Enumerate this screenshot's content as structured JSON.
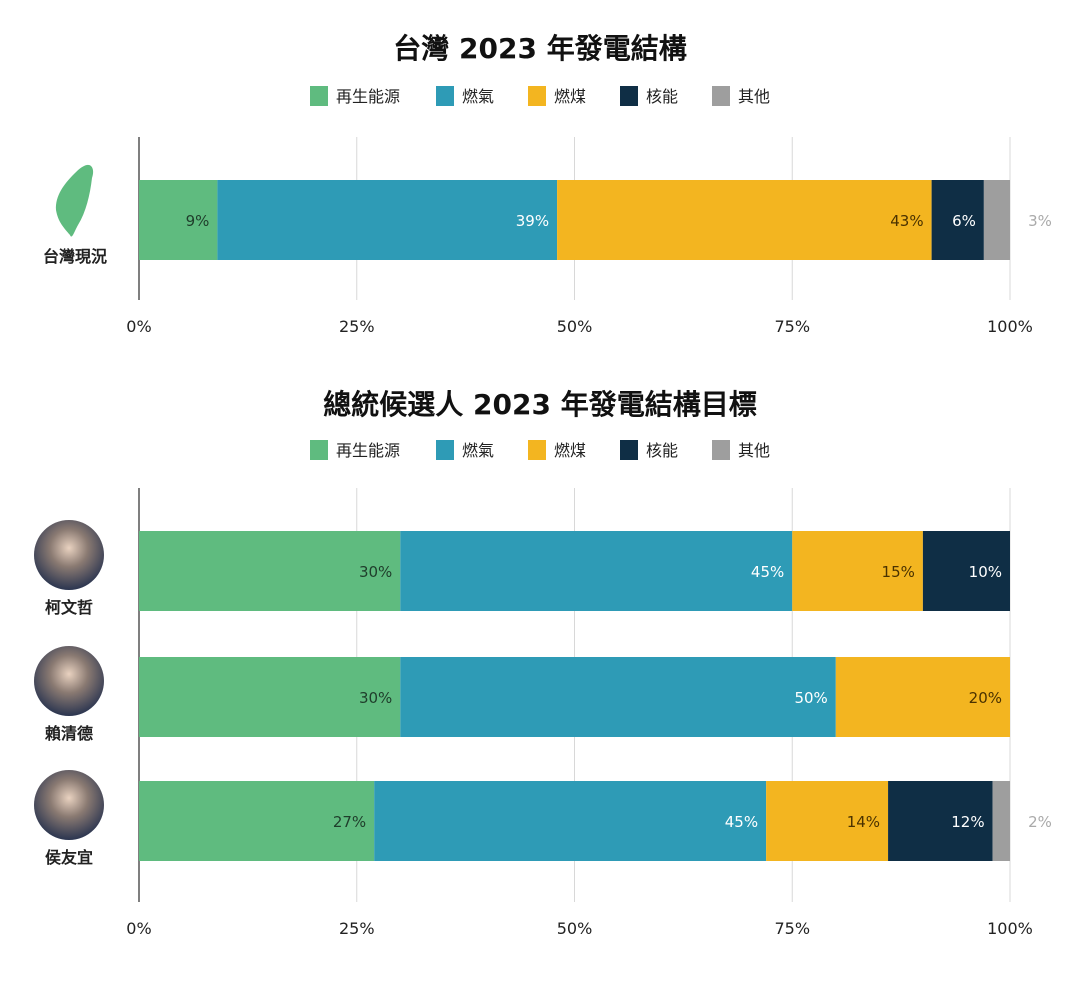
{
  "colors": {
    "再生能源": "#5fbb7f",
    "燃氣": "#2e9bb6",
    "燃煤": "#f3b520",
    "核能": "#0f2e45",
    "其他": "#9e9e9e"
  },
  "chart_data": [
    {
      "type": "bar",
      "orientation": "horizontal-stacked",
      "title": "台灣 2023 年發電結構",
      "legend": [
        "再生能源",
        "燃氣",
        "燃煤",
        "核能",
        "其他"
      ],
      "legend_position": "top",
      "xlim": [
        0,
        100
      ],
      "x_ticks": [
        "0%",
        "25%",
        "50%",
        "75%",
        "100%"
      ],
      "grid": true,
      "categories": [
        "台灣現況"
      ],
      "category_icons": [
        "taiwan-map-icon"
      ],
      "series": [
        {
          "name": "再生能源",
          "values": [
            9
          ]
        },
        {
          "name": "燃氣",
          "values": [
            39
          ]
        },
        {
          "name": "燃煤",
          "values": [
            43
          ]
        },
        {
          "name": "核能",
          "values": [
            6
          ]
        },
        {
          "name": "其他",
          "values": [
            3
          ]
        }
      ]
    },
    {
      "type": "bar",
      "orientation": "horizontal-stacked",
      "title": "總統候選人 2023 年發電結構目標",
      "legend": [
        "再生能源",
        "燃氣",
        "燃煤",
        "核能",
        "其他"
      ],
      "legend_position": "top",
      "xlim": [
        0,
        100
      ],
      "x_ticks": [
        "0%",
        "25%",
        "50%",
        "75%",
        "100%"
      ],
      "grid": true,
      "categories": [
        "柯文哲",
        "賴清德",
        "侯友宜"
      ],
      "category_icons": [
        "avatar",
        "avatar",
        "avatar"
      ],
      "series": [
        {
          "name": "再生能源",
          "values": [
            30,
            30,
            27
          ]
        },
        {
          "name": "燃氣",
          "values": [
            45,
            50,
            45
          ]
        },
        {
          "name": "燃煤",
          "values": [
            15,
            20,
            14
          ]
        },
        {
          "name": "核能",
          "values": [
            10,
            0,
            12
          ]
        },
        {
          "name": "其他",
          "values": [
            0,
            0,
            2
          ]
        }
      ]
    }
  ]
}
